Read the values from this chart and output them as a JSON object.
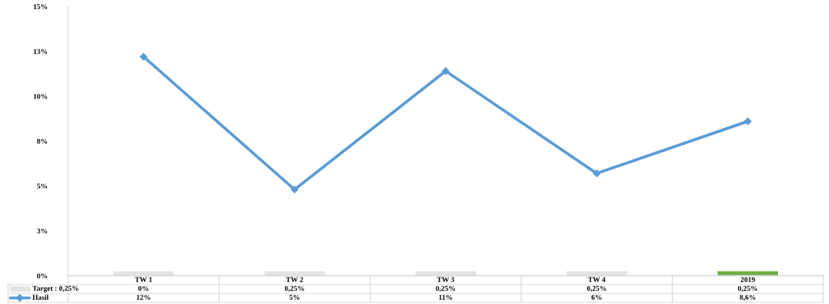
{
  "chart_data": {
    "type": "line",
    "categories": [
      "TW 1",
      "TW 2",
      "TW 3",
      "TW 4",
      "2019"
    ],
    "series": [
      {
        "name": "Target : 0,25%",
        "type": "bar",
        "colors": [
          "#e3e3e3",
          "#e3e3e3",
          "#e3e3e3",
          "#e3e3e3",
          "#70ad47"
        ],
        "values": [
          0.25,
          0.25,
          0.25,
          0.25,
          0.25
        ],
        "value_labels": [
          "0%",
          "0,25%",
          "0,25%",
          "0,25%",
          "0,25%"
        ]
      },
      {
        "name": "Hasil",
        "color": "#5b9bd5",
        "marker": "diamond",
        "values": [
          12.2,
          4.8,
          11.4,
          5.7,
          8.6
        ],
        "value_labels": [
          "12%",
          "5%",
          "11%",
          "6%",
          "8,6%"
        ]
      }
    ],
    "ylim": [
      0,
      15
    ],
    "yticks": [
      {
        "value": 0,
        "label": "0%"
      },
      {
        "value": 2.5,
        "label": "3%"
      },
      {
        "value": 5,
        "label": "5%"
      },
      {
        "value": 7.5,
        "label": "8%"
      },
      {
        "value": 10,
        "label": "10%"
      },
      {
        "value": 12.5,
        "label": "13%"
      },
      {
        "value": 15,
        "label": "15%"
      }
    ],
    "legend": "bottom left"
  }
}
